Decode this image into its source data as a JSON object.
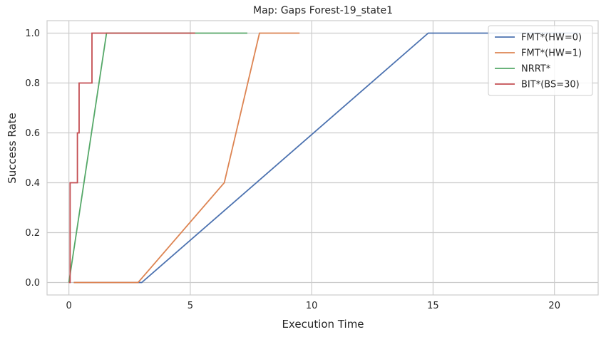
{
  "chart_data": {
    "type": "line",
    "title": "Map: Gaps Forest-19_state1",
    "xlabel": "Execution Time",
    "ylabel": "Success Rate",
    "xlim": [
      -0.9,
      21.8
    ],
    "ylim": [
      -0.05,
      1.05
    ],
    "xticks": [
      0,
      5,
      10,
      15,
      20
    ],
    "yticks": [
      0.0,
      0.2,
      0.4,
      0.6,
      0.8,
      1.0
    ],
    "xtick_labels": [
      "0",
      "5",
      "10",
      "15",
      "20"
    ],
    "ytick_labels": [
      "0.0",
      "0.2",
      "0.4",
      "0.6",
      "0.8",
      "1.0"
    ],
    "grid": true,
    "legend_position": "top-right",
    "series": [
      {
        "name": "FMT*(HW=0)",
        "color": "#4c72b0",
        "x": [
          0.2,
          3.0,
          14.8,
          21.0
        ],
        "y": [
          0.0,
          0.0,
          1.0,
          1.0
        ]
      },
      {
        "name": "FMT*(HW=1)",
        "color": "#dd8452",
        "x": [
          0.2,
          2.85,
          6.4,
          7.85,
          9.5
        ],
        "y": [
          0.0,
          0.0,
          0.4,
          1.0,
          1.0
        ]
      },
      {
        "name": "NRRT*",
        "color": "#55a868",
        "x": [
          0.0,
          1.55,
          7.35
        ],
        "y": [
          0.0,
          1.0,
          1.0
        ]
      },
      {
        "name": "BIT*(BS=30)",
        "color": "#c44e52",
        "x": [
          0.0,
          0.05,
          0.05,
          0.35,
          0.35,
          0.42,
          0.42,
          0.95,
          0.95,
          5.2
        ],
        "y": [
          0.0,
          0.0,
          0.4,
          0.4,
          0.6,
          0.6,
          0.8,
          0.8,
          1.0,
          1.0
        ]
      }
    ]
  }
}
